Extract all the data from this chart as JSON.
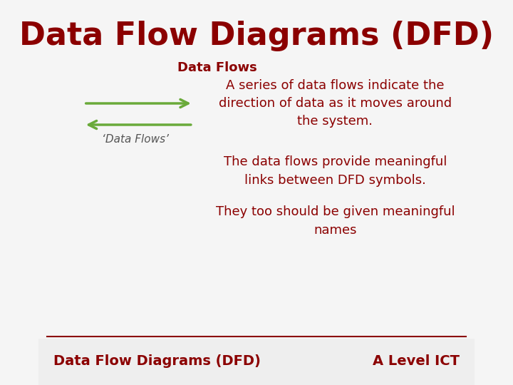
{
  "title": "Data Flow Diagrams (DFD)",
  "title_color": "#8B0000",
  "title_fontsize": 32,
  "subtitle": "Data Flows",
  "subtitle_fontsize": 13,
  "subtitle_color": "#8B0000",
  "arrow_color": "#6aaa3a",
  "arrow_label": "‘Data Flows’",
  "arrow_label_fontsize": 11,
  "arrow_label_color": "#555555",
  "body_texts": [
    "A series of data flows indicate the\ndirection of data as it moves around\nthe system.",
    "The data flows provide meaningful\nlinks between DFD symbols.",
    "They too should be given meaningful\nnames"
  ],
  "body_fontsize": 13,
  "body_color": "#8B0000",
  "footer_left": "Data Flow Diagrams (DFD)",
  "footer_right": "A Level ICT",
  "footer_color": "#8B0000",
  "footer_fontsize": 14,
  "footer_bg_color": "#8B0000",
  "footer_text_color": "#8B0000",
  "bg_color": "#f5f5f5",
  "line_color": "#8B0000"
}
